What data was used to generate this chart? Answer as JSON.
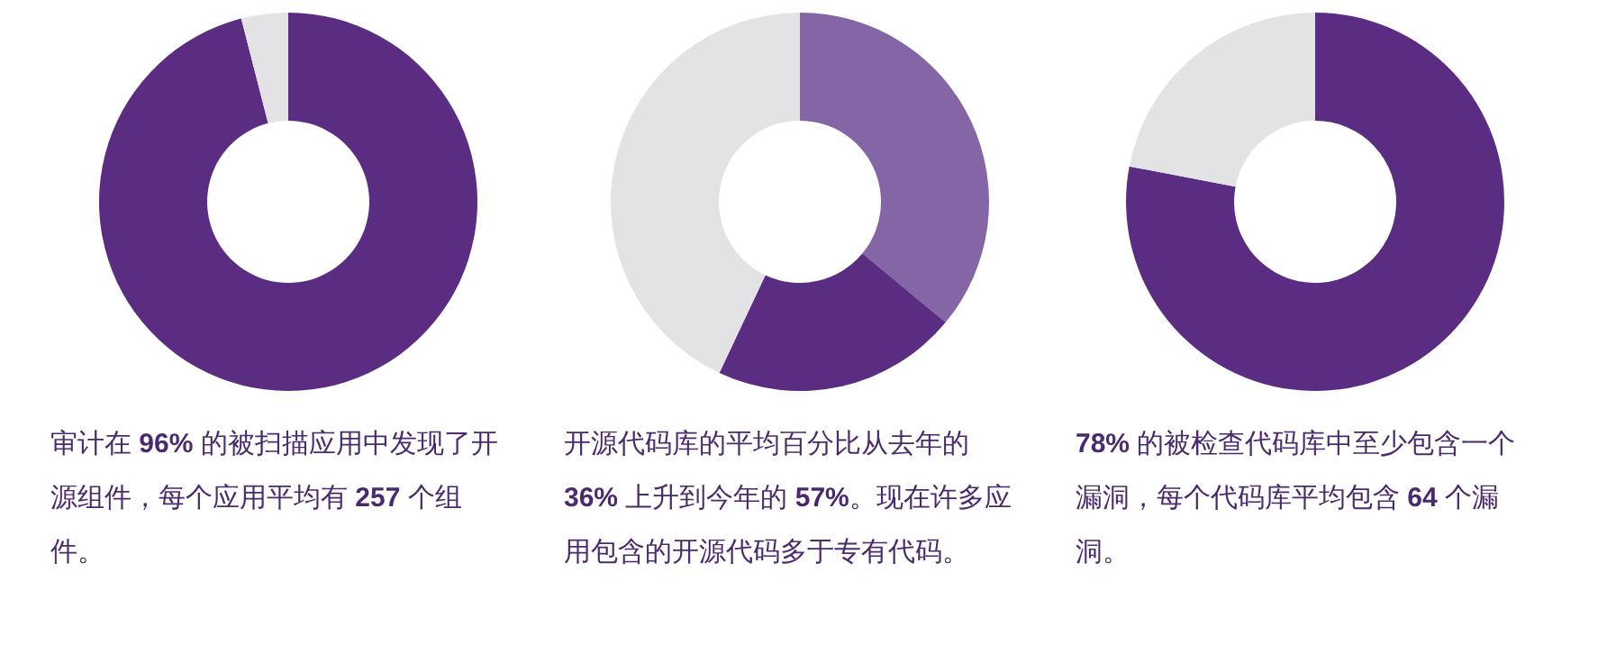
{
  "chart_data": [
    {
      "type": "donut",
      "categories": [
        null,
        null
      ],
      "values": [
        96,
        4
      ],
      "colors": [
        "#5b2d82",
        "#e3e3e5"
      ],
      "annotations": [
        "审计在 96% 的被扫描应用中发现了开源组件，每个应用平均有 257 个组件。"
      ]
    },
    {
      "type": "donut",
      "categories": [
        null,
        null,
        null
      ],
      "values": [
        36,
        21,
        43
      ],
      "colors": [
        "#8466a6",
        "#5b2d82",
        "#e3e3e5"
      ],
      "annotations": [
        "开源代码库的平均百分比从去年的 36% 上升到今年的 57%。现在许多应用包含的开源代码多于专有代码。"
      ]
    },
    {
      "type": "donut",
      "categories": [
        null,
        null
      ],
      "values": [
        78,
        22
      ],
      "colors": [
        "#5b2d82",
        "#e3e3e5"
      ],
      "annotations": [
        "78% 的被检查代码库中至少包含一个漏洞，每个代码库平均包含 64 个漏洞。"
      ]
    }
  ]
}
